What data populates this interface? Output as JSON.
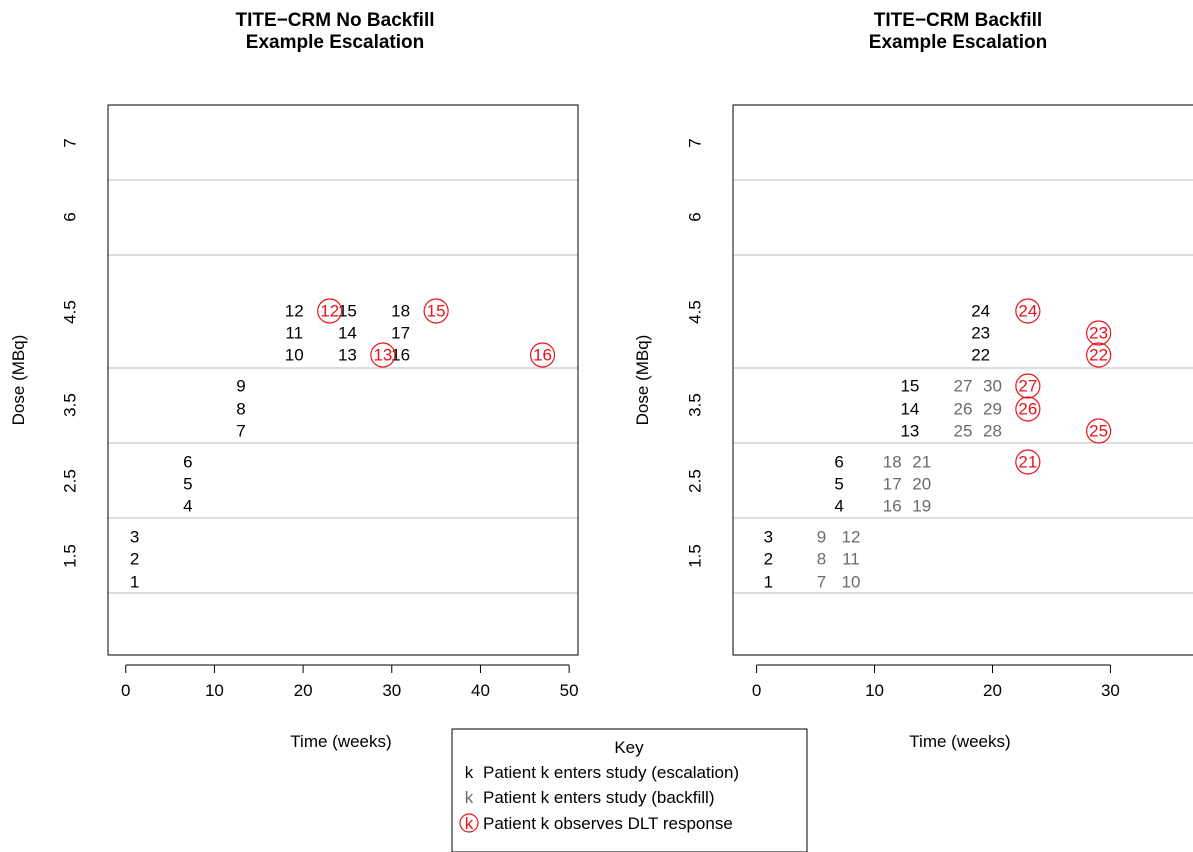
{
  "chart_data": [
    {
      "type": "scatter",
      "title": "TITE−CRM No Backfill\nExample Escalation",
      "xlabel": "Time (weeks)",
      "ylabel": "Dose (MBq)",
      "xlim": [
        -2,
        51
      ],
      "xticks": [
        0,
        10,
        20,
        30,
        40,
        50
      ],
      "ylevels": [
        "1.5",
        "2.5",
        "3.5",
        "4.5",
        "6",
        "7"
      ],
      "grid": "horizontal lines between dose levels",
      "points": [
        {
          "label": "1",
          "x": 1,
          "level": 1,
          "slot": 0,
          "kind": "escalation"
        },
        {
          "label": "2",
          "x": 1,
          "level": 1,
          "slot": 1,
          "kind": "escalation"
        },
        {
          "label": "3",
          "x": 1,
          "level": 1,
          "slot": 2,
          "kind": "escalation"
        },
        {
          "label": "4",
          "x": 7,
          "level": 2,
          "slot": 0,
          "kind": "escalation"
        },
        {
          "label": "5",
          "x": 7,
          "level": 2,
          "slot": 1,
          "kind": "escalation"
        },
        {
          "label": "6",
          "x": 7,
          "level": 2,
          "slot": 2,
          "kind": "escalation"
        },
        {
          "label": "7",
          "x": 13,
          "level": 3,
          "slot": 0,
          "kind": "escalation"
        },
        {
          "label": "8",
          "x": 13,
          "level": 3,
          "slot": 1,
          "kind": "escalation"
        },
        {
          "label": "9",
          "x": 13,
          "level": 3,
          "slot": 2,
          "kind": "escalation"
        },
        {
          "label": "10",
          "x": 19,
          "level": 4,
          "slot": 0,
          "kind": "escalation"
        },
        {
          "label": "11",
          "x": 19,
          "level": 4,
          "slot": 1,
          "kind": "escalation"
        },
        {
          "label": "12",
          "x": 19,
          "level": 4,
          "slot": 2,
          "kind": "escalation"
        },
        {
          "label": "13",
          "x": 25,
          "level": 4,
          "slot": 0,
          "kind": "escalation"
        },
        {
          "label": "14",
          "x": 25,
          "level": 4,
          "slot": 1,
          "kind": "escalation"
        },
        {
          "label": "15",
          "x": 25,
          "level": 4,
          "slot": 2,
          "kind": "escalation"
        },
        {
          "label": "16",
          "x": 31,
          "level": 4,
          "slot": 0,
          "kind": "escalation"
        },
        {
          "label": "17",
          "x": 31,
          "level": 4,
          "slot": 1,
          "kind": "escalation"
        },
        {
          "label": "18",
          "x": 31,
          "level": 4,
          "slot": 2,
          "kind": "escalation"
        },
        {
          "label": "12",
          "x": 23,
          "level": 4,
          "slot": 2,
          "kind": "dlt"
        },
        {
          "label": "13",
          "x": 29,
          "level": 4,
          "slot": 0,
          "kind": "dlt"
        },
        {
          "label": "15",
          "x": 35,
          "level": 4,
          "slot": 2,
          "kind": "dlt"
        },
        {
          "label": "16",
          "x": 47,
          "level": 4,
          "slot": 0,
          "kind": "dlt"
        }
      ]
    },
    {
      "type": "scatter",
      "title": "TITE−CRM Backfill\nExample Escalation",
      "xlabel": "Time (weeks)",
      "ylabel": "Dose (MBq)",
      "xlim": [
        -2,
        37
      ],
      "xticks": [
        0,
        10,
        20,
        30
      ],
      "ylevels": [
        "1.5",
        "2.5",
        "3.5",
        "4.5",
        "6",
        "7"
      ],
      "grid": "horizontal lines between dose levels",
      "points": [
        {
          "label": "1",
          "x": 1,
          "level": 1,
          "slot": 0,
          "kind": "escalation"
        },
        {
          "label": "2",
          "x": 1,
          "level": 1,
          "slot": 1,
          "kind": "escalation"
        },
        {
          "label": "3",
          "x": 1,
          "level": 1,
          "slot": 2,
          "kind": "escalation"
        },
        {
          "label": "4",
          "x": 7,
          "level": 2,
          "slot": 0,
          "kind": "escalation"
        },
        {
          "label": "5",
          "x": 7,
          "level": 2,
          "slot": 1,
          "kind": "escalation"
        },
        {
          "label": "6",
          "x": 7,
          "level": 2,
          "slot": 2,
          "kind": "escalation"
        },
        {
          "label": "7",
          "x": 5.5,
          "level": 1,
          "slot": 0,
          "kind": "backfill"
        },
        {
          "label": "8",
          "x": 5.5,
          "level": 1,
          "slot": 1,
          "kind": "backfill"
        },
        {
          "label": "9",
          "x": 5.5,
          "level": 1,
          "slot": 2,
          "kind": "backfill"
        },
        {
          "label": "10",
          "x": 8,
          "level": 1,
          "slot": 0,
          "kind": "backfill"
        },
        {
          "label": "11",
          "x": 8,
          "level": 1,
          "slot": 1,
          "kind": "backfill"
        },
        {
          "label": "12",
          "x": 8,
          "level": 1,
          "slot": 2,
          "kind": "backfill"
        },
        {
          "label": "13",
          "x": 13,
          "level": 3,
          "slot": 0,
          "kind": "escalation"
        },
        {
          "label": "14",
          "x": 13,
          "level": 3,
          "slot": 1,
          "kind": "escalation"
        },
        {
          "label": "15",
          "x": 13,
          "level": 3,
          "slot": 2,
          "kind": "escalation"
        },
        {
          "label": "16",
          "x": 11.5,
          "level": 2,
          "slot": 0,
          "kind": "backfill"
        },
        {
          "label": "17",
          "x": 11.5,
          "level": 2,
          "slot": 1,
          "kind": "backfill"
        },
        {
          "label": "18",
          "x": 11.5,
          "level": 2,
          "slot": 2,
          "kind": "backfill"
        },
        {
          "label": "19",
          "x": 14,
          "level": 2,
          "slot": 0,
          "kind": "backfill"
        },
        {
          "label": "20",
          "x": 14,
          "level": 2,
          "slot": 1,
          "kind": "backfill"
        },
        {
          "label": "21",
          "x": 14,
          "level": 2,
          "slot": 2,
          "kind": "backfill"
        },
        {
          "label": "22",
          "x": 19,
          "level": 4,
          "slot": 0,
          "kind": "escalation"
        },
        {
          "label": "23",
          "x": 19,
          "level": 4,
          "slot": 1,
          "kind": "escalation"
        },
        {
          "label": "24",
          "x": 19,
          "level": 4,
          "slot": 2,
          "kind": "escalation"
        },
        {
          "label": "25",
          "x": 17.5,
          "level": 3,
          "slot": 0,
          "kind": "backfill"
        },
        {
          "label": "26",
          "x": 17.5,
          "level": 3,
          "slot": 1,
          "kind": "backfill"
        },
        {
          "label": "27",
          "x": 17.5,
          "level": 3,
          "slot": 2,
          "kind": "backfill"
        },
        {
          "label": "28",
          "x": 20,
          "level": 3,
          "slot": 0,
          "kind": "backfill"
        },
        {
          "label": "29",
          "x": 20,
          "level": 3,
          "slot": 1,
          "kind": "backfill"
        },
        {
          "label": "30",
          "x": 20,
          "level": 3,
          "slot": 2,
          "kind": "backfill"
        },
        {
          "label": "24",
          "x": 23,
          "level": 4,
          "slot": 2,
          "kind": "dlt"
        },
        {
          "label": "27",
          "x": 23,
          "level": 3,
          "slot": 2,
          "kind": "dlt"
        },
        {
          "label": "26",
          "x": 23,
          "level": 3,
          "slot": 1,
          "kind": "dlt"
        },
        {
          "label": "21",
          "x": 23,
          "level": 2,
          "slot": 2,
          "kind": "dlt"
        },
        {
          "label": "23",
          "x": 29,
          "level": 4,
          "slot": 1,
          "kind": "dlt"
        },
        {
          "label": "22",
          "x": 29,
          "level": 4,
          "slot": 0,
          "kind": "dlt"
        },
        {
          "label": "25",
          "x": 29,
          "level": 3,
          "slot": 0,
          "kind": "dlt"
        }
      ]
    }
  ],
  "legend": {
    "title": "Key",
    "items": [
      {
        "symbol": "k",
        "text": "Patient k enters study (escalation)",
        "kind": "escalation"
      },
      {
        "symbol": "k",
        "text": "Patient k enters study (backfill)",
        "kind": "backfill"
      },
      {
        "symbol": "k",
        "text": "Patient k observes DLT response",
        "kind": "dlt"
      }
    ]
  },
  "colors": {
    "escalation": "#000000",
    "backfill": "#6b6b6b",
    "dlt": "#e8141b",
    "grid": "#bebebe",
    "axis": "#000000"
  }
}
